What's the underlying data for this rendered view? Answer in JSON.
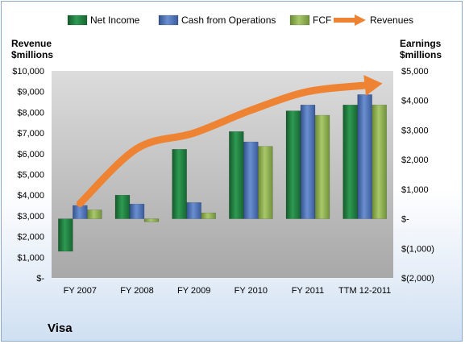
{
  "legend": {
    "net_income": "Net Income",
    "cfo": "Cash from Operations",
    "fcf": "FCF",
    "revenues": "Revenues"
  },
  "left_axis_title": [
    "Revenue",
    "$millions"
  ],
  "right_axis_title": [
    "Earnings",
    "$millions"
  ],
  "company": "Visa",
  "colors": {
    "net_income": "#1f7a3c",
    "cfo": "#4a6fb5",
    "fcf": "#86aa48",
    "revenues": "#ee8433",
    "plot_top": "#d9d9d9",
    "plot_bottom": "#a6a6a6"
  },
  "chart_data": {
    "type": "bar",
    "categories": [
      "FY 2007",
      "FY 2008",
      "FY 2009",
      "FY 2010",
      "FY 2011",
      "TTM 12-2011"
    ],
    "series": [
      {
        "name": "Net Income",
        "axis": "right",
        "values": [
          -1100,
          800,
          2350,
          2950,
          3650,
          3850
        ]
      },
      {
        "name": "Cash from Operations",
        "axis": "right",
        "values": [
          450,
          500,
          550,
          2600,
          3850,
          4200
        ]
      },
      {
        "name": "FCF",
        "axis": "right",
        "values": [
          300,
          -100,
          200,
          2450,
          3500,
          3850
        ]
      },
      {
        "name": "Revenues",
        "type": "line-arrow",
        "axis": "left",
        "values": [
          3600,
          6250,
          7000,
          8100,
          9000,
          9300
        ]
      }
    ],
    "left_axis": {
      "ylim": [
        0,
        10000
      ],
      "ticks": [
        "$-",
        "$1,000",
        "$2,000",
        "$3,000",
        "$4,000",
        "$5,000",
        "$6,000",
        "$7,000",
        "$8,000",
        "$9,000",
        "$10,000"
      ]
    },
    "right_axis": {
      "ylim": [
        -2000,
        5000
      ],
      "ticks": [
        "$(2,000)",
        "$(1,000)",
        "$-",
        "$1,000",
        "$2,000",
        "$3,000",
        "$4,000",
        "$5,000"
      ]
    },
    "grid": false,
    "legend_position": "top"
  }
}
